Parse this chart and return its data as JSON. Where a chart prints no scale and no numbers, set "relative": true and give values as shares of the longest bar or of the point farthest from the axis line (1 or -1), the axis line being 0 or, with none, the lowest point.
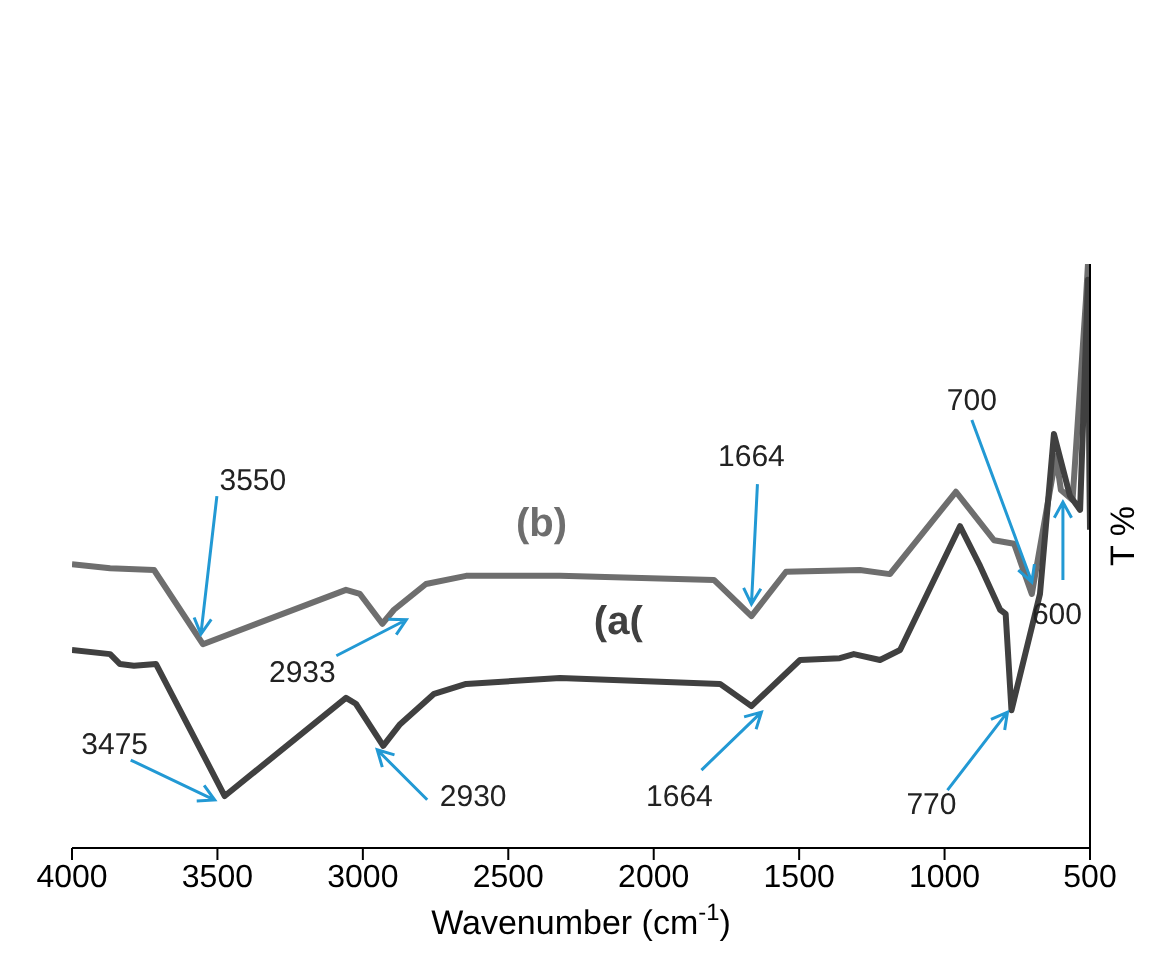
{
  "chart_data": {
    "type": "line",
    "xlabel": "Wavenumber (cm$^{-1}$)",
    "ylabel": "T %",
    "relative": true,
    "marker": "none",
    "xlim": [
      4000,
      500
    ],
    "xticks": [
      4000,
      3500,
      3000,
      2500,
      2000,
      1500,
      1000,
      500
    ],
    "series": [
      {
        "name": "(b)",
        "color": "#6e6e6e",
        "x": [
          4000,
          3869,
          3718,
          3550,
          3058,
          3010,
          2933,
          2893,
          2783,
          2645,
          2322,
          1793,
          1664,
          1545,
          1291,
          1188,
          961,
          830,
          761,
          700,
          617,
          600,
          560,
          514,
          507,
          500
        ],
        "values": [
          0.486,
          0.479,
          0.476,
          0.349,
          0.442,
          0.435,
          0.384,
          0.408,
          0.452,
          0.466,
          0.466,
          0.459,
          0.397,
          0.473,
          0.476,
          0.469,
          0.61,
          0.527,
          0.521,
          0.435,
          0.671,
          0.613,
          0.596,
          0.938,
          1,
          0.562
        ]
      },
      {
        "name": "(a(",
        "color": "#404040",
        "x": [
          4000,
          3869,
          3835,
          3787,
          3711,
          3475,
          3058,
          3024,
          2930,
          2872,
          2755,
          2645,
          2322,
          1772,
          1664,
          1497,
          1360,
          1312,
          1222,
          1153,
          947,
          878,
          809,
          790,
          770,
          672,
          624,
          569,
          534,
          514,
          507,
          500
        ],
        "values": [
          0.339,
          0.332,
          0.315,
          0.312,
          0.315,
          0.089,
          0.257,
          0.247,
          0.175,
          0.212,
          0.264,
          0.281,
          0.291,
          0.281,
          0.243,
          0.322,
          0.325,
          0.332,
          0.322,
          0.339,
          0.551,
          0.483,
          0.408,
          0.401,
          0.236,
          0.435,
          0.709,
          0.603,
          0.579,
          0.87,
          0.973,
          0.545
        ]
      }
    ],
    "annotations": [
      {
        "text": "3550",
        "x": 3550,
        "y": 0.349
      },
      {
        "text": "2933",
        "x": 2933,
        "y": 0.384
      },
      {
        "text": "3475",
        "x": 3475,
        "y": 0.089
      },
      {
        "text": "2930",
        "x": 2930,
        "y": 0.175
      },
      {
        "text": "1664",
        "x": 1664,
        "y": 0.397
      },
      {
        "text": "1664",
        "x": 1664,
        "y": 0.243
      },
      {
        "text": "770",
        "x": 770,
        "y": 0.236
      },
      {
        "text": "700",
        "x": 700,
        "y": 0.435
      },
      {
        "text": "600",
        "x": 600,
        "y": 0.613
      }
    ]
  }
}
